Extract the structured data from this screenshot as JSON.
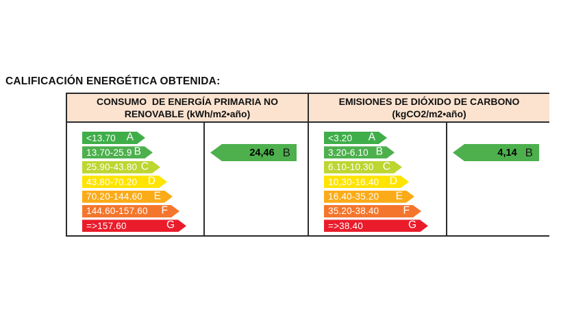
{
  "title": "CALIFICACIÓN ENERGÉTICA OBTENIDA:",
  "columns": [
    {
      "header_line1": "CONSUMO  DE ENERGÍA PRIMARIA NO",
      "header_line2": "RENOVABLE (kWh/m2•año)",
      "scale": [
        {
          "range": "<13.70",
          "letter": "A"
        },
        {
          "range": "13.70-25.9",
          "letter": "B"
        },
        {
          "range": "25.90-43.80",
          "letter": "C"
        },
        {
          "range": "43.80-70.20",
          "letter": "D"
        },
        {
          "range": "70.20-144.60",
          "letter": "E"
        },
        {
          "range": "144.60-157.60",
          "letter": "F"
        },
        {
          "range": "=>157.60",
          "letter": "G"
        }
      ],
      "rating": {
        "value": "24,46",
        "letter": "B"
      }
    },
    {
      "header_line1": "EMISIONES DE DIÓXIDO DE CARBONO",
      "header_line2": "(kgCO2/m2•año)",
      "scale": [
        {
          "range": "<3.20",
          "letter": "A"
        },
        {
          "range": "3.20-6.10",
          "letter": "B"
        },
        {
          "range": "6.10-10.30",
          "letter": "C"
        },
        {
          "range": "10,30-16.40",
          "letter": "D"
        },
        {
          "range": "16.40-35.20",
          "letter": "E"
        },
        {
          "range": "35.20-38.40",
          "letter": "F"
        },
        {
          "range": "=>38.40",
          "letter": "G"
        }
      ],
      "rating": {
        "value": "4,14",
        "letter": "B"
      }
    }
  ],
  "colors": {
    "band_a": "#3fae49",
    "band_b": "#4db04d",
    "band_c": "#bdd631",
    "band_d": "#ffe400",
    "band_e": "#fbab18",
    "band_f": "#f4762c",
    "band_g": "#ea1c2b",
    "rating_arrow": "#4db04d",
    "header_bg": "#fbe3d0",
    "border": "#2b2b2b"
  },
  "chart_data": [
    {
      "type": "bar",
      "title": "CONSUMO DE ENERGÍA PRIMARIA NO RENOVABLE (kWh/m2•año)",
      "categories": [
        "A",
        "B",
        "C",
        "D",
        "E",
        "F",
        "G"
      ],
      "band_ranges": [
        "<13.70",
        "13.70-25.9",
        "25.90-43.80",
        "43.80-70.20",
        "70.20-144.60",
        "144.60-157.60",
        "=>157.60"
      ],
      "obtained_value": 24.46,
      "obtained_class": "B"
    },
    {
      "type": "bar",
      "title": "EMISIONES DE DIÓXIDO DE CARBONO (kgCO2/m2•año)",
      "categories": [
        "A",
        "B",
        "C",
        "D",
        "E",
        "F",
        "G"
      ],
      "band_ranges": [
        "<3.20",
        "3.20-6.10",
        "6.10-10.30",
        "10,30-16.40",
        "16.40-35.20",
        "35.20-38.40",
        "=>38.40"
      ],
      "obtained_value": 4.14,
      "obtained_class": "B"
    }
  ]
}
